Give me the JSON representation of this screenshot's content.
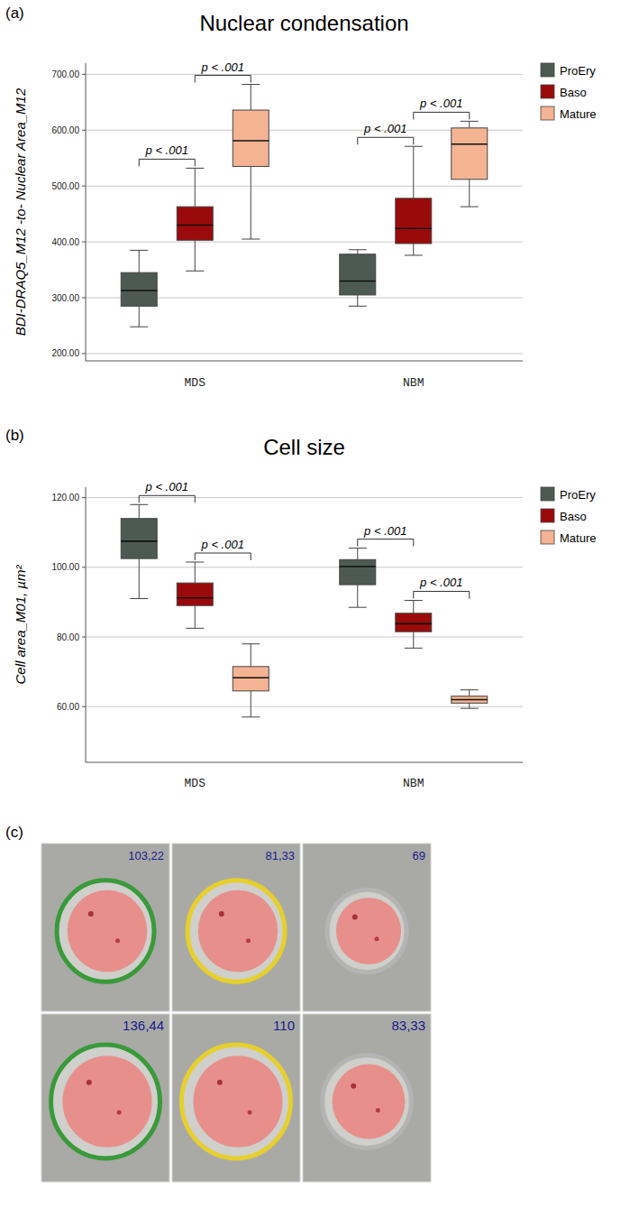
{
  "chart_data": [
    {
      "type": "box",
      "panel": "(a)",
      "title": "Nuclear condensation",
      "y_label": "BDI-DRAQ5_M12 -to- Nuclear Area_M12",
      "categories": [
        "MDS",
        "NBM"
      ],
      "series": [
        {
          "name": "ProEry",
          "color": "#4d5a53",
          "values": [
            {
              "min": 248,
              "q1": 285,
              "median": 313,
              "q3": 345,
              "max": 385
            },
            {
              "min": 285,
              "q1": 305,
              "median": 330,
              "q3": 378,
              "max": 386
            }
          ]
        },
        {
          "name": "Baso",
          "color": "#9b0a0a",
          "values": [
            {
              "min": 348,
              "q1": 403,
              "median": 430,
              "q3": 463,
              "max": 532
            },
            {
              "min": 376,
              "q1": 397,
              "median": 424,
              "q3": 478,
              "max": 571
            }
          ]
        },
        {
          "name": "Mature",
          "color": "#f4b393",
          "values": [
            {
              "min": 405,
              "q1": 535,
              "median": 581,
              "q3": 636,
              "max": 682
            },
            {
              "min": 463,
              "q1": 512,
              "median": 575,
              "q3": 604,
              "max": 616
            }
          ]
        }
      ],
      "ylim": [
        187,
        720
      ],
      "yticks": [
        {
          "value": 200,
          "label": "200.00"
        },
        {
          "value": 300,
          "label": "300.00"
        },
        {
          "value": 400,
          "label": "400.00"
        },
        {
          "value": 500,
          "label": "500.00"
        },
        {
          "value": 600,
          "label": "600.00"
        },
        {
          "value": 700,
          "label": "700.00"
        }
      ],
      "grid": true,
      "legend": "right",
      "annotations": [
        {
          "text": "p < .001",
          "category": "MDS",
          "from": "ProEry",
          "to": "Baso"
        },
        {
          "text": "p < .001",
          "category": "MDS",
          "from": "Baso",
          "to": "Mature"
        },
        {
          "text": "p < .001",
          "category": "NBM",
          "from": "ProEry",
          "to": "Baso"
        },
        {
          "text": "p < .001",
          "category": "NBM",
          "from": "Baso",
          "to": "Mature"
        }
      ]
    },
    {
      "type": "box",
      "panel": "(b)",
      "title": "Cell size",
      "y_label": "Cell area_M01, µm²",
      "categories": [
        "MDS",
        "NBM"
      ],
      "series": [
        {
          "name": "ProEry",
          "color": "#4d5a53",
          "values": [
            {
              "min": 91,
              "q1": 102.5,
              "median": 107.5,
              "q3": 114,
              "max": 118
            },
            {
              "min": 88.5,
              "q1": 95,
              "median": 100.2,
              "q3": 102.2,
              "max": 105.5
            }
          ]
        },
        {
          "name": "Baso",
          "color": "#9b0a0a",
          "values": [
            {
              "min": 82.5,
              "q1": 89,
              "median": 91.2,
              "q3": 95.5,
              "max": 101.5
            },
            {
              "min": 76.8,
              "q1": 81.5,
              "median": 83.8,
              "q3": 86.8,
              "max": 90.5
            }
          ]
        },
        {
          "name": "Mature",
          "color": "#f4b393",
          "values": [
            {
              "min": 57,
              "q1": 64.5,
              "median": 68.3,
              "q3": 71.5,
              "max": 78
            },
            {
              "min": 59.5,
              "q1": 61,
              "median": 62,
              "q3": 63,
              "max": 64.8
            }
          ]
        }
      ],
      "ylim": [
        44,
        123
      ],
      "yticks": [
        {
          "value": 60,
          "label": "60.00"
        },
        {
          "value": 80,
          "label": "80.00"
        },
        {
          "value": 100,
          "label": "100.00"
        },
        {
          "value": 120,
          "label": "120.00"
        }
      ],
      "grid": true,
      "legend": "right",
      "annotations": [
        {
          "text": "p < .001",
          "category": "MDS",
          "from": "ProEry",
          "to": "Baso"
        },
        {
          "text": "p < .001",
          "category": "MDS",
          "from": "Baso",
          "to": "Mature"
        },
        {
          "text": "p < .001",
          "category": "NBM",
          "from": "ProEry",
          "to": "Baso"
        },
        {
          "text": "p < .001",
          "category": "NBM",
          "from": "Baso",
          "to": "Mature"
        }
      ]
    }
  ],
  "panel_c": {
    "panel": "(c)",
    "images": [
      {
        "label": "103,22"
      },
      {
        "label": "81,33"
      },
      {
        "label": "69"
      },
      {
        "label": "136,44"
      },
      {
        "label": "110"
      },
      {
        "label": "83,33"
      }
    ]
  }
}
